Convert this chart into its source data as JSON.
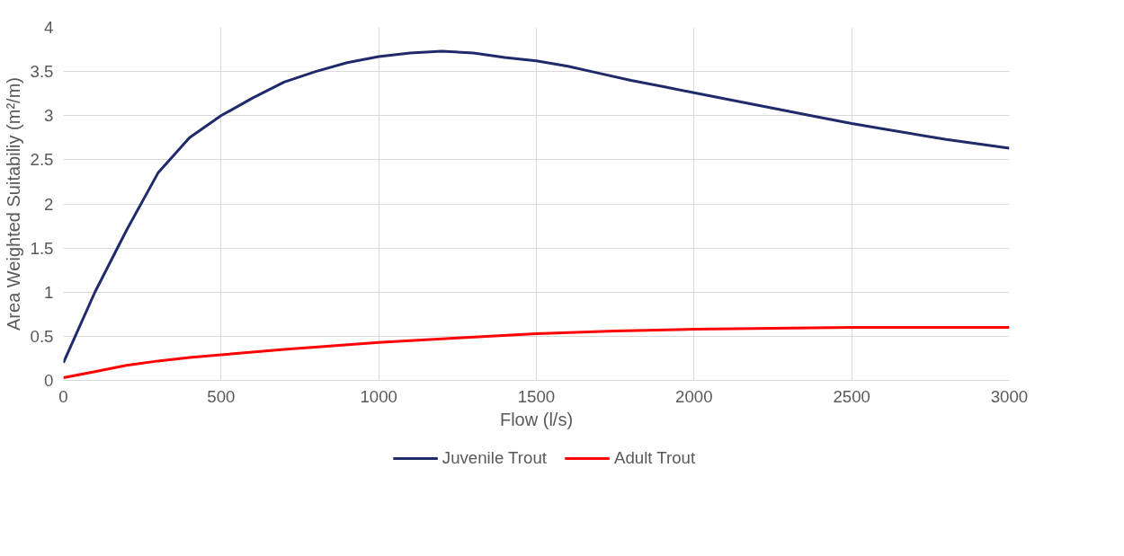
{
  "chart_data": {
    "type": "line",
    "xlabel": "Flow (l/s)",
    "ylabel": "Area Weighted Suitabiliy (m²/m)",
    "xlim": [
      0,
      3000
    ],
    "xticks": [
      0,
      500,
      1000,
      1500,
      2000,
      2500,
      3000
    ],
    "ylim": [
      0,
      4
    ],
    "yticks": [
      0,
      0.5,
      1,
      1.5,
      2,
      2.5,
      3,
      3.5,
      4
    ],
    "grid": true,
    "legend": "bottom",
    "marker": "none",
    "line_style": "solid",
    "series": [
      {
        "name": "Juvenile Trout",
        "color": "#1f2a6b",
        "x": [
          0,
          100,
          200,
          300,
          400,
          500,
          600,
          700,
          800,
          900,
          1000,
          1100,
          1200,
          1300,
          1400,
          1500,
          1600,
          1700,
          1800,
          1900,
          2000,
          2200,
          2400,
          2500,
          2600,
          2800,
          3000
        ],
        "values": [
          0.2,
          1.0,
          1.7,
          2.35,
          2.75,
          3.0,
          3.2,
          3.38,
          3.5,
          3.6,
          3.67,
          3.71,
          3.73,
          3.71,
          3.66,
          3.62,
          3.56,
          3.48,
          3.4,
          3.33,
          3.26,
          3.12,
          2.98,
          2.91,
          2.85,
          2.73,
          2.63
        ]
      },
      {
        "name": "Adult Trout",
        "color": "#ff0000",
        "x": [
          0,
          100,
          200,
          300,
          400,
          500,
          700,
          1000,
          1250,
          1500,
          1750,
          2000,
          2250,
          2500,
          3000
        ],
        "values": [
          0.03,
          0.1,
          0.17,
          0.22,
          0.26,
          0.29,
          0.35,
          0.43,
          0.48,
          0.53,
          0.56,
          0.58,
          0.59,
          0.6,
          0.6
        ]
      }
    ]
  }
}
